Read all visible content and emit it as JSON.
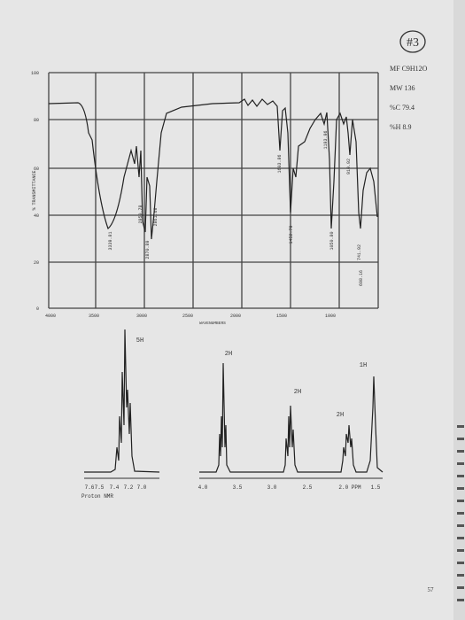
{
  "header": {
    "badge": "#3",
    "formula": "MF C9H12O",
    "mw": "MW 136",
    "carbon": "%C 79.4",
    "hydrogen": "%H 8.9"
  },
  "ir": {
    "y_label": "% TRANSMITTANCE",
    "x_label": "WAVENUMBERS",
    "y_ticks": [
      "100",
      "80",
      "60",
      "40",
      "20",
      "0"
    ],
    "x_ticks": [
      "4000",
      "3500",
      "3000",
      "2500",
      "2000",
      "1500",
      "1000"
    ],
    "peaks": [
      "3339.81",
      "2950.78",
      "2870.89",
      "2861.68",
      "1603.86",
      "1452.79",
      "1193.96",
      "1050.80",
      "910.92",
      "741.92",
      "698.16"
    ]
  },
  "nmr": {
    "caption": "Proton NMR",
    "integrals": [
      "5H",
      "2H",
      "2H",
      "2H",
      "1H"
    ],
    "left_ticks": [
      "7.6",
      "7.5",
      "7.4",
      "7.2",
      "7.0"
    ],
    "right_ticks": [
      "4.0",
      "3.5",
      "3.0",
      "2.5",
      "2.0 PPM",
      "1.5"
    ]
  },
  "page_number": "57"
}
